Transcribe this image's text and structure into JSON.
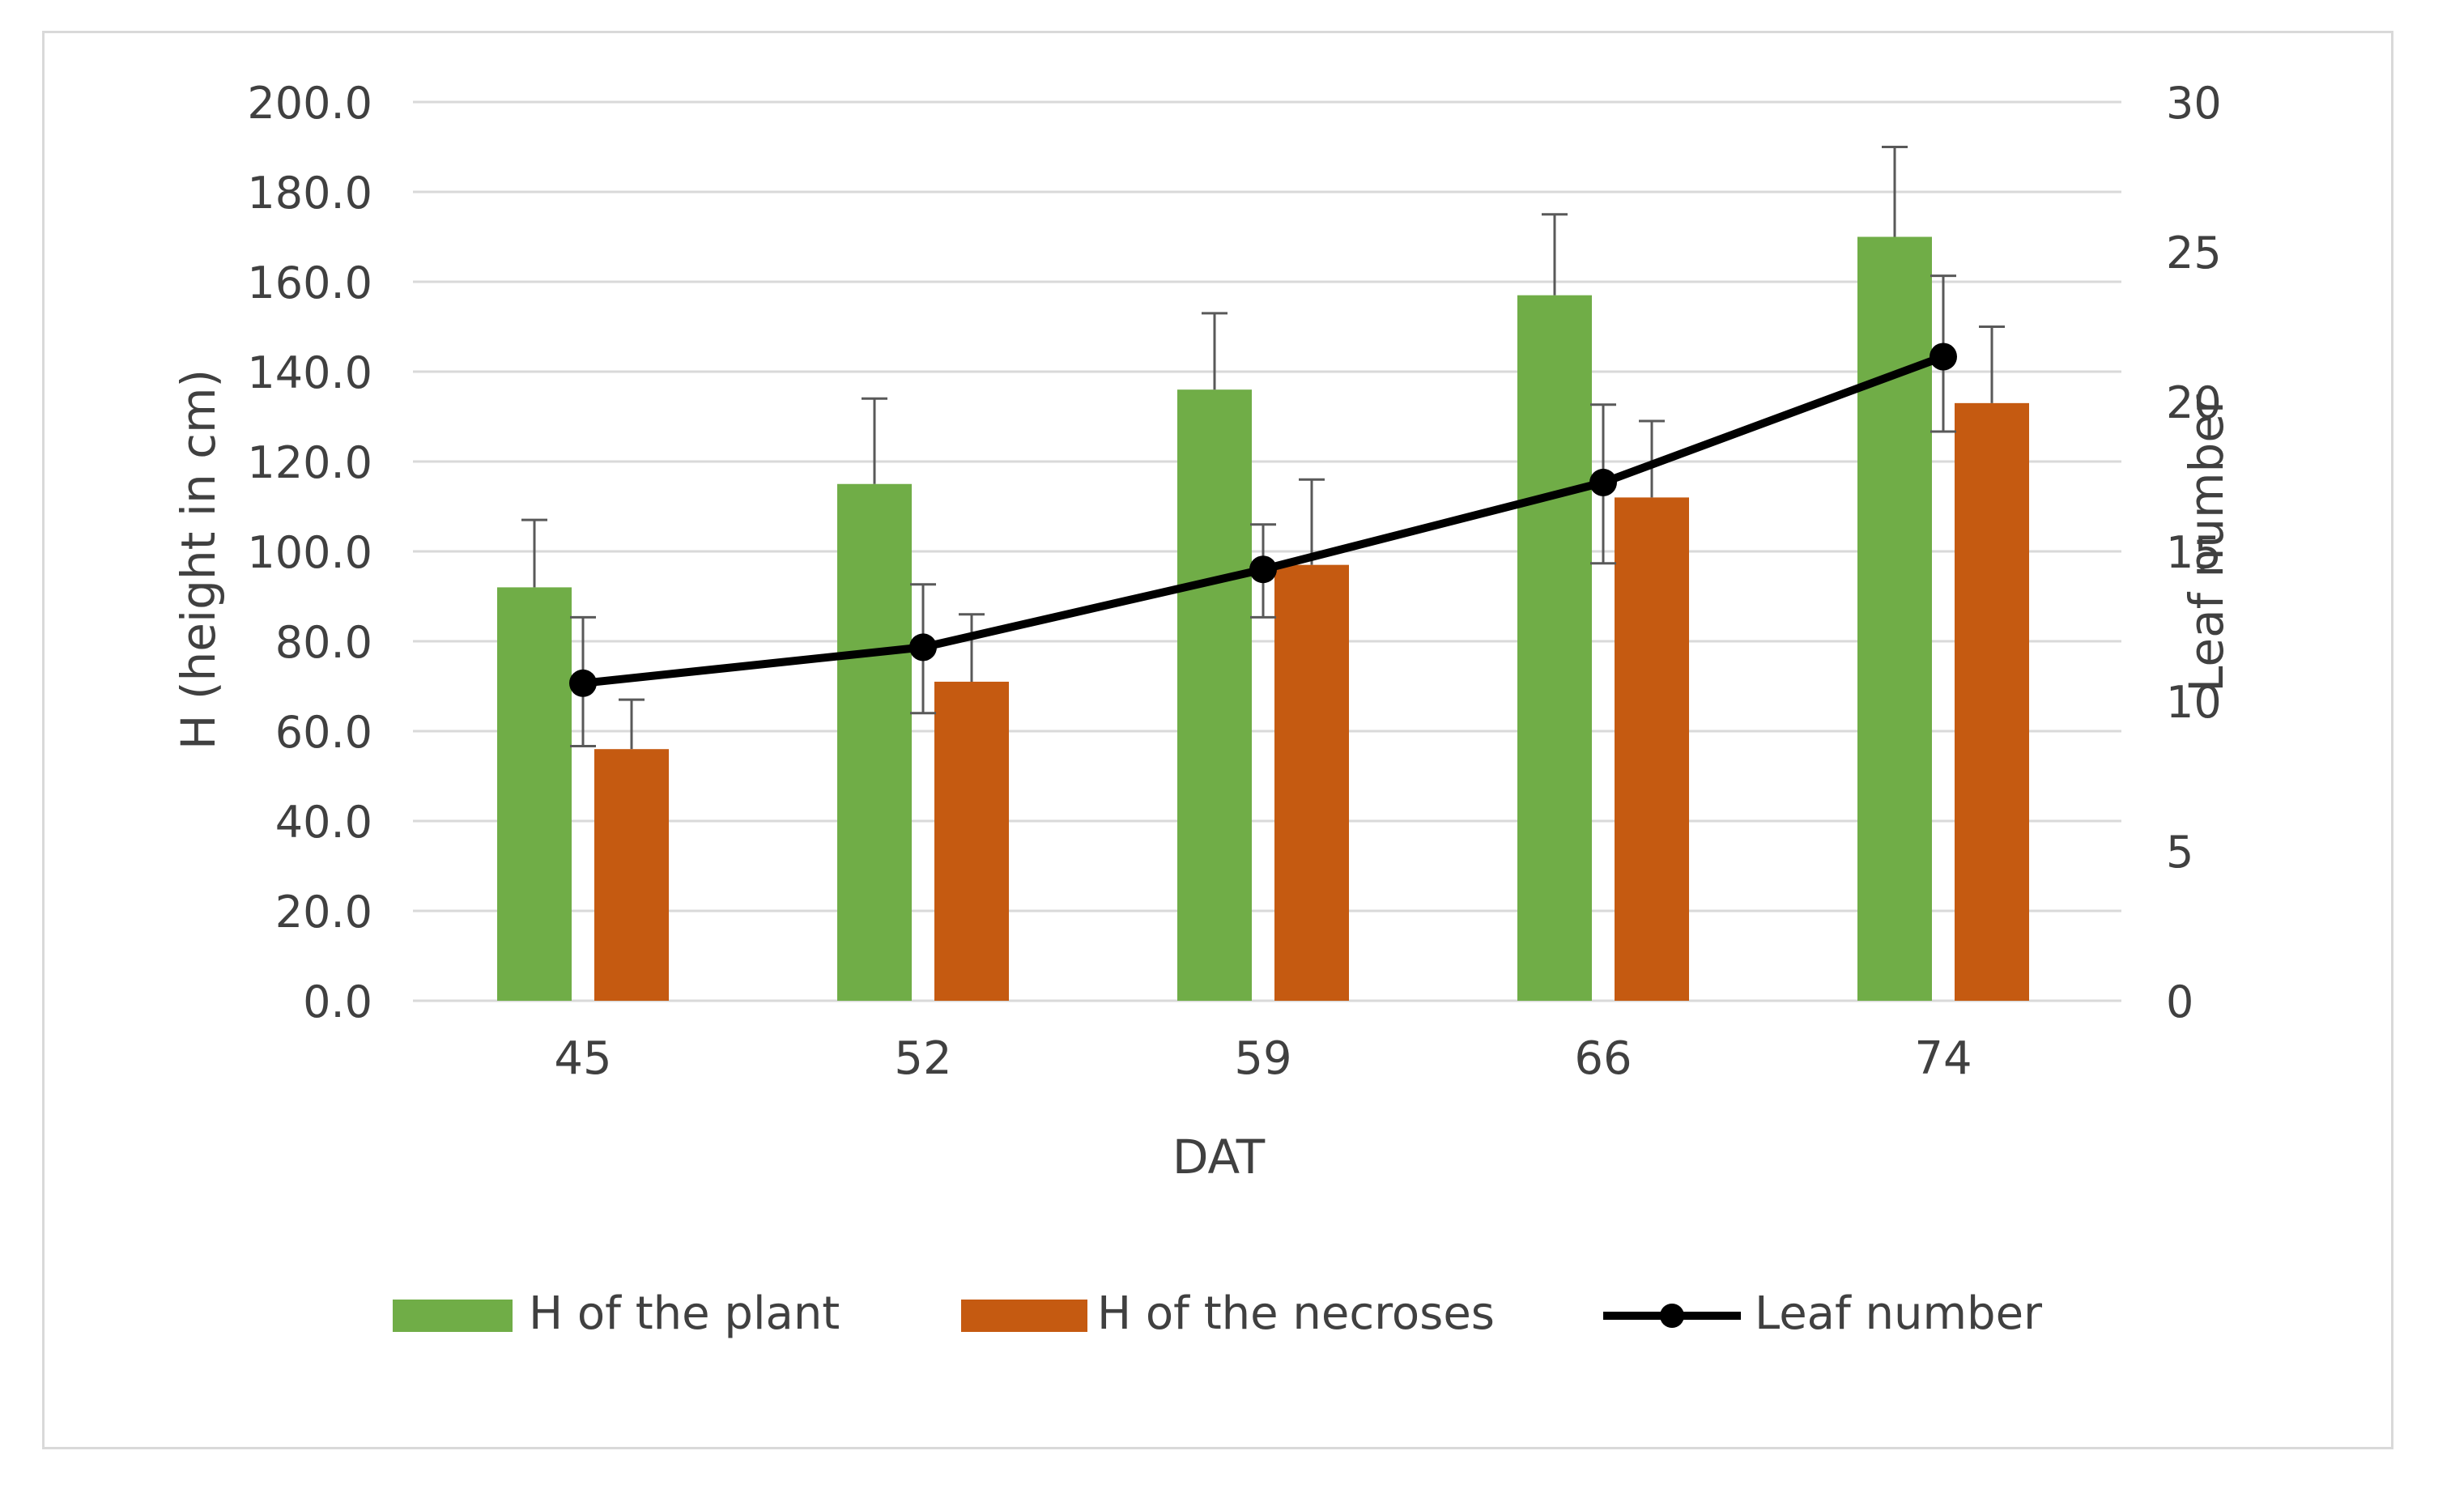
{
  "chart_data": {
    "type": "bar",
    "categories": [
      "45",
      "52",
      "59",
      "66",
      "74"
    ],
    "xlabel": "DAT",
    "ylabel": "H (height in cm)",
    "y2label": "Leaf number",
    "ylim": [
      0,
      200
    ],
    "y2lim": [
      0,
      30
    ],
    "yticks": [
      "0.0",
      "20.0",
      "40.0",
      "60.0",
      "80.0",
      "100.0",
      "120.0",
      "140.0",
      "160.0",
      "180.0",
      "200.0"
    ],
    "y2ticks": [
      "0",
      "5",
      "10",
      "15",
      "20",
      "25",
      "30"
    ],
    "grid": true,
    "legend_position": "bottom",
    "series": [
      {
        "name": "H of the plant",
        "kind": "bar",
        "axis": "left",
        "color": "#70ad47",
        "values": [
          92,
          115,
          136,
          157,
          170
        ],
        "error_upper": [
          107,
          134,
          153,
          175,
          190
        ]
      },
      {
        "name": "H of the necroses",
        "kind": "bar",
        "axis": "left",
        "color": "#c55a11",
        "values": [
          56,
          71,
          97,
          112,
          133
        ],
        "error_upper": [
          67,
          86,
          116,
          129,
          150
        ]
      },
      {
        "name": "Leaf number",
        "kind": "line",
        "axis": "right",
        "color": "#000000",
        "values": [
          10.6,
          11.8,
          14.4,
          17.3,
          21.5
        ],
        "error_upper": [
          12.8,
          13.9,
          15.9,
          19.9,
          24.2
        ],
        "error_lower": [
          8.5,
          9.6,
          12.8,
          14.6,
          19.0
        ]
      }
    ]
  }
}
